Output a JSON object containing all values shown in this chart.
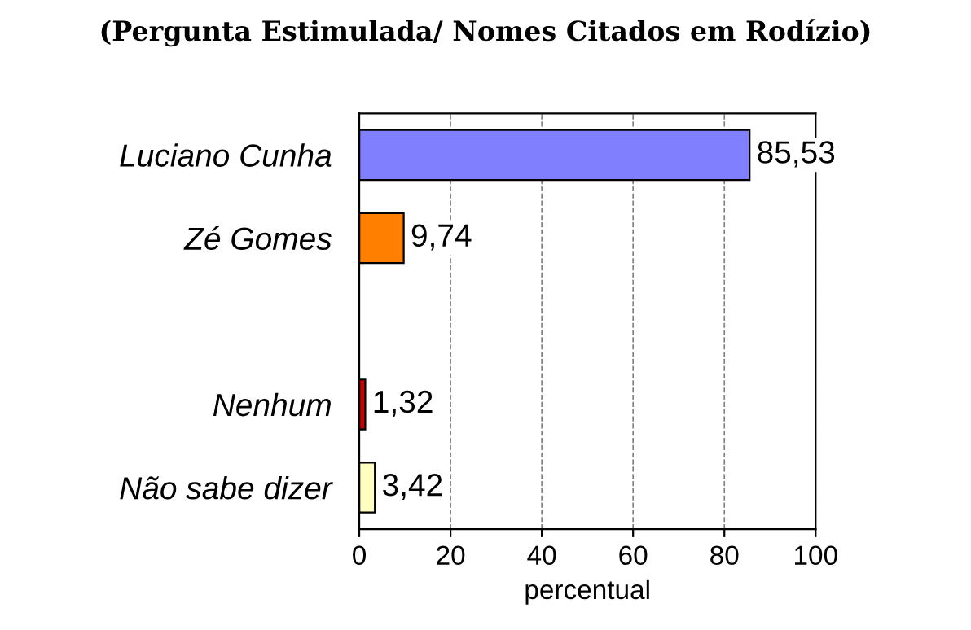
{
  "chart_data": {
    "type": "bar",
    "orientation": "horizontal",
    "title": "(Pergunta Estimulada/ Nomes Citados em Rodízio)",
    "xlabel": "percentual",
    "categories": [
      "Luciano Cunha",
      "Zé Gomes",
      null,
      "Nenhum",
      "Não sabe dizer"
    ],
    "values": [
      85.53,
      9.74,
      null,
      1.32,
      3.42
    ],
    "colors": [
      "#8080ff",
      "#ff8000",
      "#ffffff",
      "#cc0000",
      "#ffffc0"
    ],
    "value_labels": [
      "85,53",
      "9,74",
      null,
      "1,32",
      "3,42"
    ],
    "xlim": [
      0,
      100
    ],
    "xticks": [
      0,
      20,
      40,
      60,
      80,
      100
    ],
    "grid": "x"
  }
}
